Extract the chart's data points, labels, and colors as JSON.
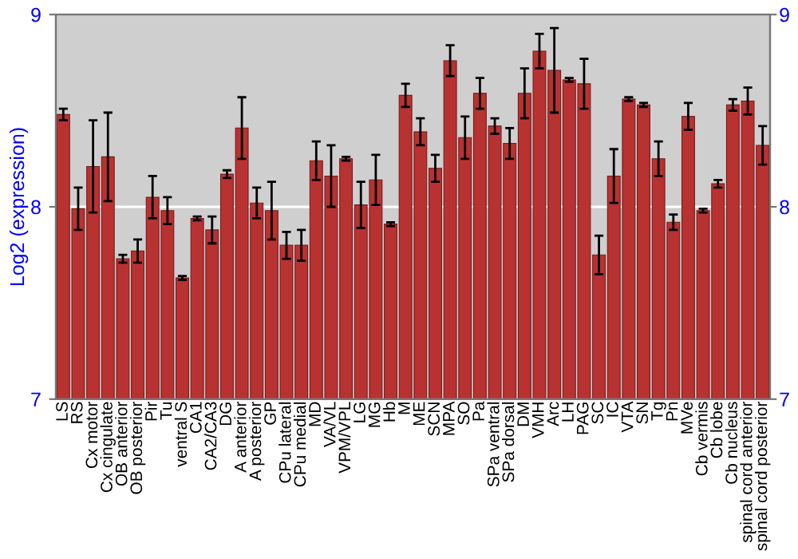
{
  "chart_data": {
    "type": "bar",
    "ylabel": "Log2 (expression)",
    "categories": [
      "LS",
      "RS",
      "Cx motor",
      "Cx cingulate",
      "OB anterior",
      "OB posterior",
      "Pir",
      "Tu",
      "ventral S",
      "CA1",
      "CA2/CA3",
      "DG",
      "A anterior",
      "A posterior",
      "GP",
      "CPu lateral",
      "CPu medial",
      "MD",
      "VA/VL",
      "VPM/VPL",
      "LG",
      "MG",
      "Hb",
      "M",
      "ME",
      "SCN",
      "MPA",
      "SO",
      "Pa",
      "SPa ventral",
      "SPa dorsal",
      "DM",
      "VMH",
      "Arc",
      "LH",
      "PAG",
      "SC",
      "IC",
      "VTA",
      "SN",
      "Tg",
      "Pn",
      "MVe",
      "Cb vermis",
      "Cb lobe",
      "Cb nucleus",
      "spinal cord anterior",
      "spinal cord posterior"
    ],
    "values": [
      8.48,
      7.99,
      8.21,
      8.26,
      7.73,
      7.77,
      8.05,
      7.98,
      7.63,
      7.94,
      7.88,
      8.17,
      8.41,
      8.02,
      7.98,
      7.8,
      7.8,
      8.24,
      8.16,
      8.25,
      8.01,
      8.14,
      7.91,
      8.58,
      8.39,
      8.2,
      8.76,
      8.36,
      8.59,
      8.42,
      8.33,
      8.59,
      8.81,
      8.71,
      8.66,
      8.64,
      7.75,
      8.16,
      8.56,
      8.53,
      8.25,
      7.92,
      8.47,
      7.98,
      8.12,
      8.53,
      8.55,
      8.32
    ],
    "errors": [
      0.03,
      0.11,
      0.24,
      0.23,
      0.02,
      0.06,
      0.11,
      0.07,
      0.01,
      0.01,
      0.07,
      0.02,
      0.16,
      0.08,
      0.15,
      0.07,
      0.08,
      0.1,
      0.16,
      0.01,
      0.12,
      0.13,
      0.01,
      0.06,
      0.07,
      0.07,
      0.08,
      0.11,
      0.08,
      0.04,
      0.08,
      0.13,
      0.09,
      0.22,
      0.01,
      0.13,
      0.1,
      0.14,
      0.01,
      0.01,
      0.09,
      0.04,
      0.07,
      0.01,
      0.02,
      0.03,
      0.07,
      0.1
    ],
    "color": "#b83232",
    "ylim": [
      7,
      9
    ],
    "yticks": [
      7,
      8,
      9
    ],
    "y2lim": [
      7,
      9
    ],
    "y2ticks": [
      7,
      8,
      9
    ],
    "grid": "y"
  }
}
